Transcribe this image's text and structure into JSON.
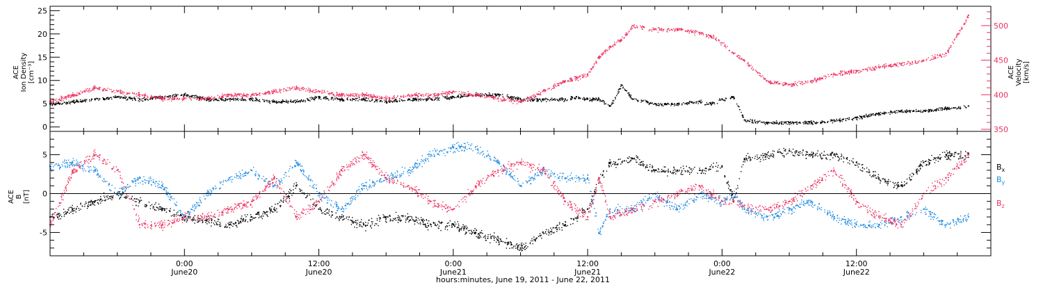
{
  "colors": {
    "black": "#000000",
    "pink": "#ee2e5e",
    "blue": "#1a88e0"
  },
  "x_axis": {
    "title": "hours:minutes, June 19, 2011 - June 22, 2011",
    "range_hours": [
      -12,
      72
    ],
    "ticks": [
      {
        "hour": 0,
        "time": "0:00",
        "date": "June20"
      },
      {
        "hour": 12,
        "time": "12:00",
        "date": "June20"
      },
      {
        "hour": 24,
        "time": "0:00",
        "date": "June21"
      },
      {
        "hour": 36,
        "time": "12:00",
        "date": "June21"
      },
      {
        "hour": 48,
        "time": "0:00",
        "date": "June22"
      },
      {
        "hour": 60,
        "time": "12:00",
        "date": "June22"
      }
    ]
  },
  "chart_data": [
    {
      "type": "scatter",
      "panel": "top",
      "ylabel_left": [
        "ACE",
        "Ion Density",
        "[cm⁻³]"
      ],
      "ylabel_right": [
        "ACE",
        "Velocity",
        "[km/s]"
      ],
      "ylim_left": [
        -0.5,
        25.5
      ],
      "ylim_right": [
        350,
        525
      ],
      "yticks_left": [
        0,
        5,
        10,
        15,
        20,
        25
      ],
      "yticks_right": [
        350,
        400,
        450,
        500
      ],
      "series": [
        {
          "color": "#000000",
          "axis": "left",
          "x": [
            -12,
            -10,
            -8,
            -6,
            -4,
            -2,
            0,
            2,
            4,
            6,
            8,
            10,
            12,
            14,
            16,
            18,
            20,
            22,
            24,
            26,
            28,
            30,
            32,
            34,
            35,
            36,
            37,
            38,
            39,
            40,
            42,
            44,
            46,
            47,
            48,
            49,
            50,
            52,
            54,
            56,
            58,
            60,
            62,
            64,
            66,
            68,
            70
          ],
          "y": [
            5,
            5.5,
            6,
            6.5,
            6,
            6.5,
            7,
            6,
            6,
            6,
            5.5,
            5.5,
            6.5,
            6,
            6,
            5.5,
            6,
            6,
            6.5,
            7,
            7,
            6,
            6,
            6,
            6.5,
            6,
            6,
            4.5,
            9,
            6,
            5,
            5,
            5.5,
            5,
            6,
            6.5,
            1.5,
            1,
            1,
            1,
            1.5,
            2,
            3,
            3.5,
            3.5,
            4,
            4.5
          ]
        },
        {
          "color": "#ee2e5e",
          "axis": "right",
          "x": [
            -12,
            -10,
            -8,
            -6,
            -4,
            -2,
            0,
            2,
            4,
            6,
            8,
            10,
            12,
            14,
            16,
            18,
            20,
            22,
            24,
            26,
            28,
            30,
            32,
            34,
            35,
            36,
            37,
            38,
            39,
            40,
            41,
            42,
            44,
            46,
            47,
            48,
            49,
            50,
            52,
            54,
            56,
            58,
            60,
            62,
            64,
            66,
            68,
            70
          ],
          "y": [
            390,
            400,
            410,
            405,
            400,
            395,
            395,
            395,
            400,
            400,
            405,
            410,
            405,
            400,
            400,
            395,
            400,
            400,
            405,
            400,
            395,
            390,
            405,
            420,
            425,
            430,
            455,
            470,
            480,
            500,
            498,
            495,
            495,
            490,
            485,
            475,
            460,
            450,
            420,
            415,
            420,
            430,
            435,
            440,
            445,
            450,
            460,
            515
          ]
        }
      ]
    },
    {
      "type": "scatter",
      "panel": "bottom",
      "ylabel_left": [
        "ACE",
        "B",
        "[nT]"
      ],
      "ylim": [
        -8,
        8
      ],
      "yticks": [
        -5,
        0,
        5
      ],
      "legend": [
        {
          "label": "B",
          "sub": "x",
          "color": "#000000"
        },
        {
          "label": "B",
          "sub": "y",
          "color": "#1a88e0"
        },
        {
          "label": "B",
          "sub": "z",
          "color": "#ee2e5e"
        }
      ],
      "series": [
        {
          "color": "#000000",
          "x": [
            -12,
            -10,
            -8,
            -6,
            -4,
            -2,
            0,
            2,
            4,
            6,
            8,
            10,
            12,
            14,
            16,
            18,
            20,
            22,
            24,
            26,
            28,
            30,
            32,
            34,
            36,
            37,
            38,
            40,
            42,
            44,
            46,
            48,
            49,
            50,
            52,
            54,
            56,
            58,
            60,
            62,
            64,
            66,
            68,
            70
          ],
          "y": [
            -3,
            -2,
            -1,
            0,
            -1,
            -2,
            -3,
            -3.5,
            -4,
            -3,
            -2,
            1,
            -2,
            -3,
            -4,
            -3,
            -3,
            -4,
            -4,
            -5,
            -6,
            -7,
            -5,
            -4,
            -2,
            2,
            4,
            4.5,
            3,
            3,
            3,
            3.5,
            -1,
            4.5,
            5,
            5.5,
            5,
            5,
            4,
            2,
            1,
            4,
            5,
            5
          ]
        },
        {
          "color": "#1a88e0",
          "x": [
            -12,
            -10,
            -8,
            -6,
            -4,
            -2,
            0,
            2,
            4,
            6,
            8,
            10,
            12,
            14,
            16,
            18,
            20,
            22,
            24,
            26,
            28,
            30,
            32,
            34,
            36,
            37,
            38,
            40,
            42,
            44,
            46,
            48,
            49,
            50,
            52,
            54,
            56,
            58,
            60,
            62,
            64,
            66,
            68,
            70
          ],
          "y": [
            3.5,
            4,
            3,
            0,
            2,
            1,
            -3,
            0,
            2,
            3,
            1,
            4,
            0,
            -2,
            1,
            2,
            3,
            5,
            6,
            6,
            4,
            1,
            3,
            2,
            2,
            -5,
            -2,
            -2,
            0,
            -2,
            0,
            -1,
            0,
            -2,
            -3,
            -2,
            -1,
            -3,
            -4,
            -4,
            -3,
            -2,
            -4,
            -3
          ]
        },
        {
          "color": "#ee2e5e",
          "x": [
            -12,
            -10,
            -8,
            -6,
            -4,
            -2,
            0,
            2,
            4,
            6,
            8,
            10,
            12,
            14,
            16,
            18,
            20,
            22,
            24,
            26,
            28,
            30,
            32,
            34,
            36,
            37,
            38,
            40,
            42,
            44,
            46,
            48,
            49,
            50,
            52,
            54,
            56,
            58,
            60,
            62,
            64,
            66,
            68,
            70
          ],
          "y": [
            -4,
            3,
            5,
            3,
            -4,
            -4,
            -3,
            -3,
            -2,
            -1,
            2,
            -3,
            -1,
            3,
            5,
            2,
            1,
            -1,
            -2,
            1,
            3,
            4,
            3,
            -1,
            -3,
            2,
            -3,
            -2,
            -1,
            0,
            1,
            -1,
            -1,
            -1.5,
            -2,
            -1,
            1,
            3,
            -1,
            -3,
            -4,
            0,
            2,
            5
          ]
        }
      ]
    }
  ]
}
